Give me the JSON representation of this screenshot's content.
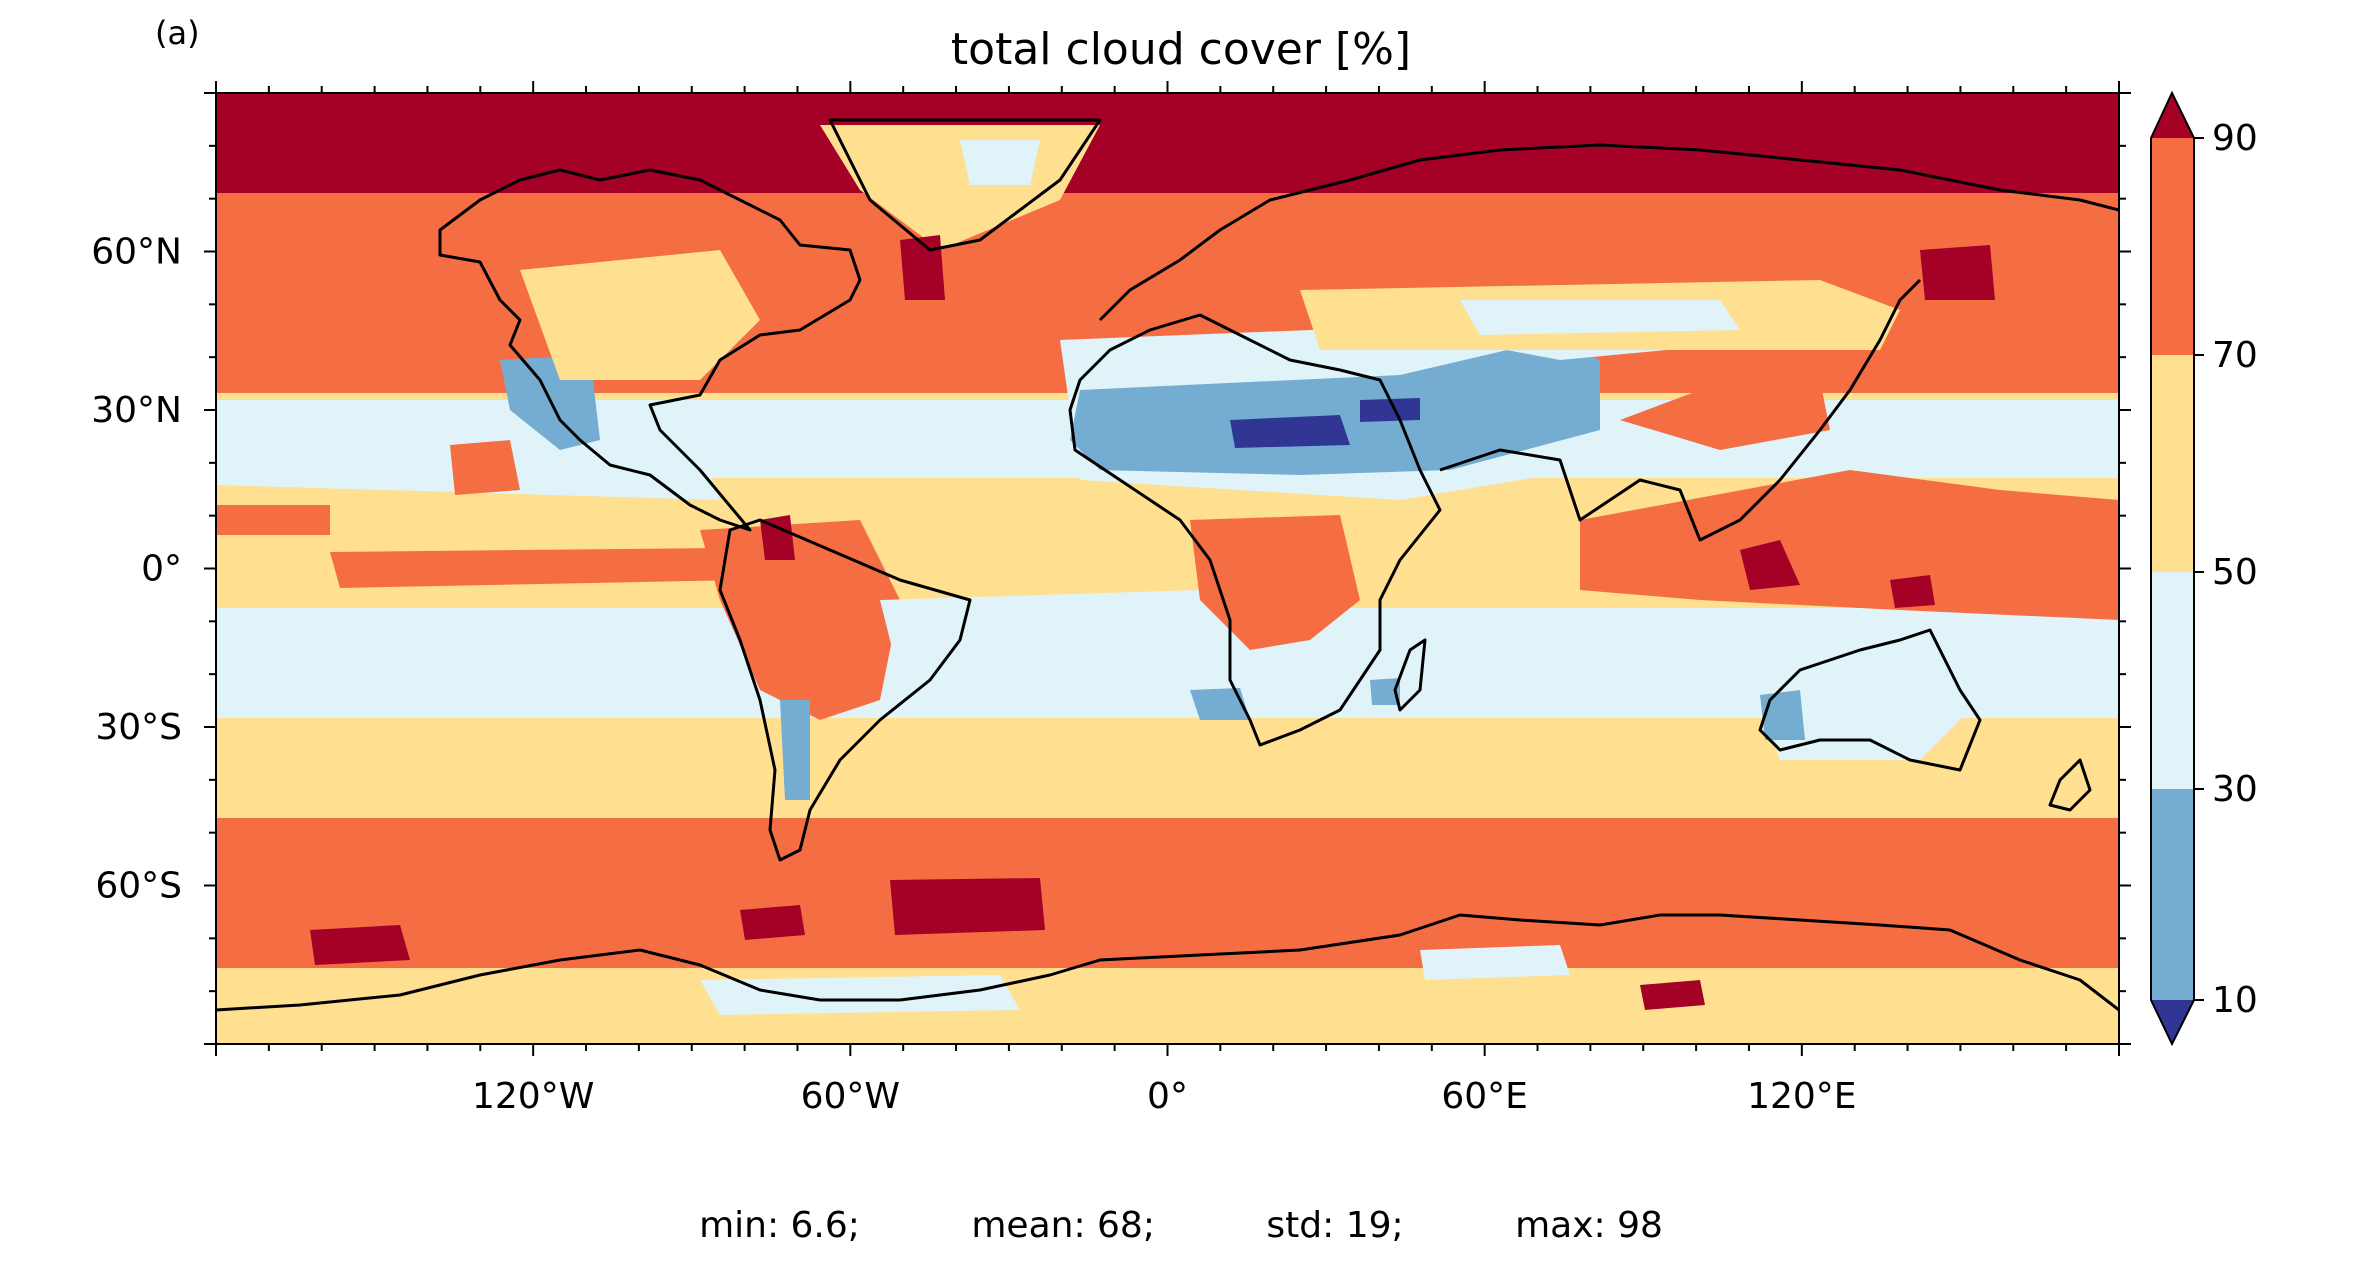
{
  "panel_label": "(a)",
  "title": "total cloud cover [%]",
  "map": {
    "projection": "PlateCarree",
    "lon_range": [
      -180,
      180
    ],
    "lat_range": [
      -90,
      90
    ],
    "coastlines": true,
    "x_ticks": [
      {
        "lon": -120,
        "label": "120°W"
      },
      {
        "lon": -60,
        "label": "60°W"
      },
      {
        "lon": 0,
        "label": "0°"
      },
      {
        "lon": 60,
        "label": "60°E"
      },
      {
        "lon": 120,
        "label": "120°E"
      }
    ],
    "y_ticks": [
      {
        "lat": 60,
        "label": "60°N"
      },
      {
        "lat": 30,
        "label": "30°N"
      },
      {
        "lat": 0,
        "label": "0°"
      },
      {
        "lat": -30,
        "label": "30°S"
      },
      {
        "lat": -60,
        "label": "60°S"
      }
    ]
  },
  "colorbar": {
    "levels": [
      10,
      30,
      50,
      70,
      90
    ],
    "labels": [
      "10",
      "30",
      "50",
      "70",
      "90"
    ],
    "extend": "both",
    "colors": {
      "under": "#313695",
      "b10_30": "#74add1",
      "b30_50": "#e0f3f8",
      "b50_70": "#fee090",
      "b70_90": "#f46d43",
      "over": "#a50026"
    }
  },
  "stats": {
    "min": "min: 6.6;",
    "mean": "mean: 68;",
    "std": "std: 19;",
    "max": "max: 98"
  }
}
